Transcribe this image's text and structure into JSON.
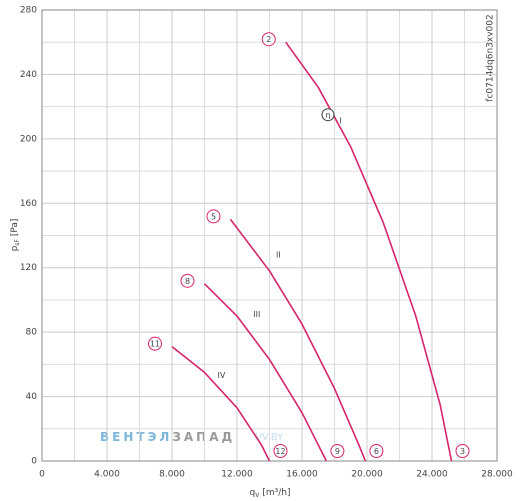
{
  "chart_data": {
    "type": "line",
    "y_label": "p",
    "y_label_sub": "sF",
    "y_label_unit": "[Pa]",
    "x_label": "q",
    "x_label_sub": "V",
    "x_label_unit": "[m³/h]",
    "code": "fc0714dq6n3xv002",
    "watermark": [
      "ВЕНТЭЛ",
      "ЗАПАД",
      "VV.BY"
    ],
    "xlim": [
      0,
      28000
    ],
    "ylim": [
      0,
      280
    ],
    "xticks": [
      0,
      {
        "value": 4000,
        "label": "4.000"
      },
      {
        "value": 8000,
        "label": "8.000"
      },
      {
        "value": 12000,
        "label": "12.000"
      },
      {
        "value": 16000,
        "label": "16.000"
      },
      {
        "value": 20000,
        "label": "20.000"
      },
      {
        "value": 24000,
        "label": "24.000"
      },
      {
        "value": 28000,
        "label": "28.000"
      }
    ],
    "yticks": [
      0,
      40,
      80,
      120,
      160,
      200,
      240,
      280
    ],
    "grid": true,
    "series": [
      {
        "name": "I",
        "color": "#d6246e",
        "start_label": "2",
        "end_label": "3",
        "label_at": [
          18300,
          211
        ],
        "x": [
          15000,
          17000,
          19000,
          21000,
          23000,
          24500,
          25200
        ],
        "values": [
          260,
          232,
          195,
          148,
          90,
          35,
          0
        ]
      },
      {
        "name": "II",
        "color": "#d6246e",
        "start_label": "5",
        "end_label": "6",
        "label_at": [
          14400,
          128
        ],
        "x": [
          11600,
          14000,
          16000,
          18000,
          19500,
          19900
        ],
        "values": [
          150,
          118,
          85,
          45,
          10,
          0
        ]
      },
      {
        "name": "III",
        "color": "#d6246e",
        "start_label": "8",
        "end_label": "9",
        "label_at": [
          13000,
          91
        ],
        "x": [
          10000,
          12000,
          14000,
          16000,
          17500
        ],
        "values": [
          110,
          90,
          63,
          30,
          0
        ]
      },
      {
        "name": "IV",
        "color": "#d6246e",
        "start_label": "11",
        "end_label": "12",
        "label_at": [
          10800,
          53
        ],
        "x": [
          8000,
          10000,
          12000,
          13500,
          14000
        ],
        "values": [
          71,
          55,
          33,
          10,
          0
        ]
      }
    ],
    "annotations": [
      {
        "text": "η",
        "x": 17600,
        "y": 215
      }
    ]
  }
}
